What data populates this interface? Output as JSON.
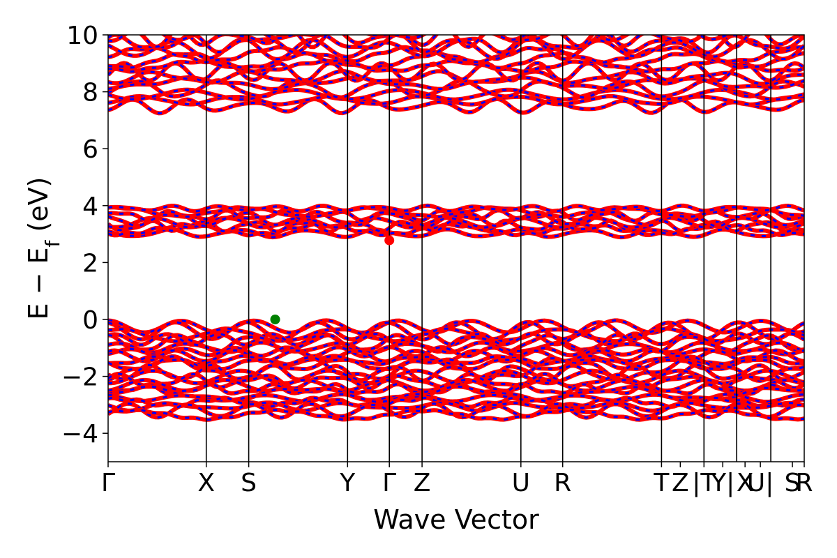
{
  "chart_data": {
    "type": "line",
    "title": "",
    "xlabel": "Wave Vector",
    "ylabel_parts": {
      "main": "E − E",
      "sub": "f",
      "unit": " (eV)"
    },
    "ylim": [
      -5,
      10
    ],
    "yticks": [
      {
        "value": -4,
        "label": "−4"
      },
      {
        "value": -2,
        "label": "−2"
      },
      {
        "value": 0,
        "label": "0"
      },
      {
        "value": 2,
        "label": "2"
      },
      {
        "value": 4,
        "label": "4"
      },
      {
        "value": 6,
        "label": "6"
      },
      {
        "value": 8,
        "label": "8"
      },
      {
        "value": 10,
        "label": "10"
      }
    ],
    "xlim": [
      0,
      1
    ],
    "kpoints": [
      {
        "x": 0.0,
        "label": "Γ"
      },
      {
        "x": 0.141,
        "label": "X"
      },
      {
        "x": 0.202,
        "label": "S"
      },
      {
        "x": 0.344,
        "label": "Y"
      },
      {
        "x": 0.404,
        "label": "Γ"
      },
      {
        "x": 0.451,
        "label": "Z"
      },
      {
        "x": 0.593,
        "label": "U"
      },
      {
        "x": 0.653,
        "label": "R"
      },
      {
        "x": 0.795,
        "label": "T"
      },
      {
        "x": 0.822,
        "label": "Z"
      },
      {
        "x": 0.856,
        "label": "|T"
      },
      {
        "x": 0.883,
        "label": "Y|"
      },
      {
        "x": 0.915,
        "label": "X"
      },
      {
        "x": 0.937,
        "label": "U|"
      },
      {
        "x": 0.983,
        "label": "S"
      },
      {
        "x": 1.0,
        "label": "R"
      }
    ],
    "vlines_x": [
      0.141,
      0.202,
      0.344,
      0.404,
      0.451,
      0.593,
      0.653,
      0.795,
      0.856,
      0.903,
      0.952
    ],
    "colors": {
      "band_primary": "#ff0000",
      "band_secondary": "#0000ff",
      "vbm_marker": "#008000",
      "cbm_marker": "#ff0000"
    },
    "markers": {
      "vbm": {
        "x": 0.24,
        "y": 0.0
      },
      "cbm": {
        "x": 0.404,
        "y": 2.78
      }
    },
    "band_groups": {
      "valence": {
        "top": 0.0,
        "bottom": -3.55,
        "count": 22
      },
      "conduction_low": {
        "bottom": 2.78,
        "top": 4.1,
        "count": 8
      },
      "conduction_high": {
        "bottom": 7.2,
        "top": 10.0,
        "count": 14
      }
    }
  }
}
